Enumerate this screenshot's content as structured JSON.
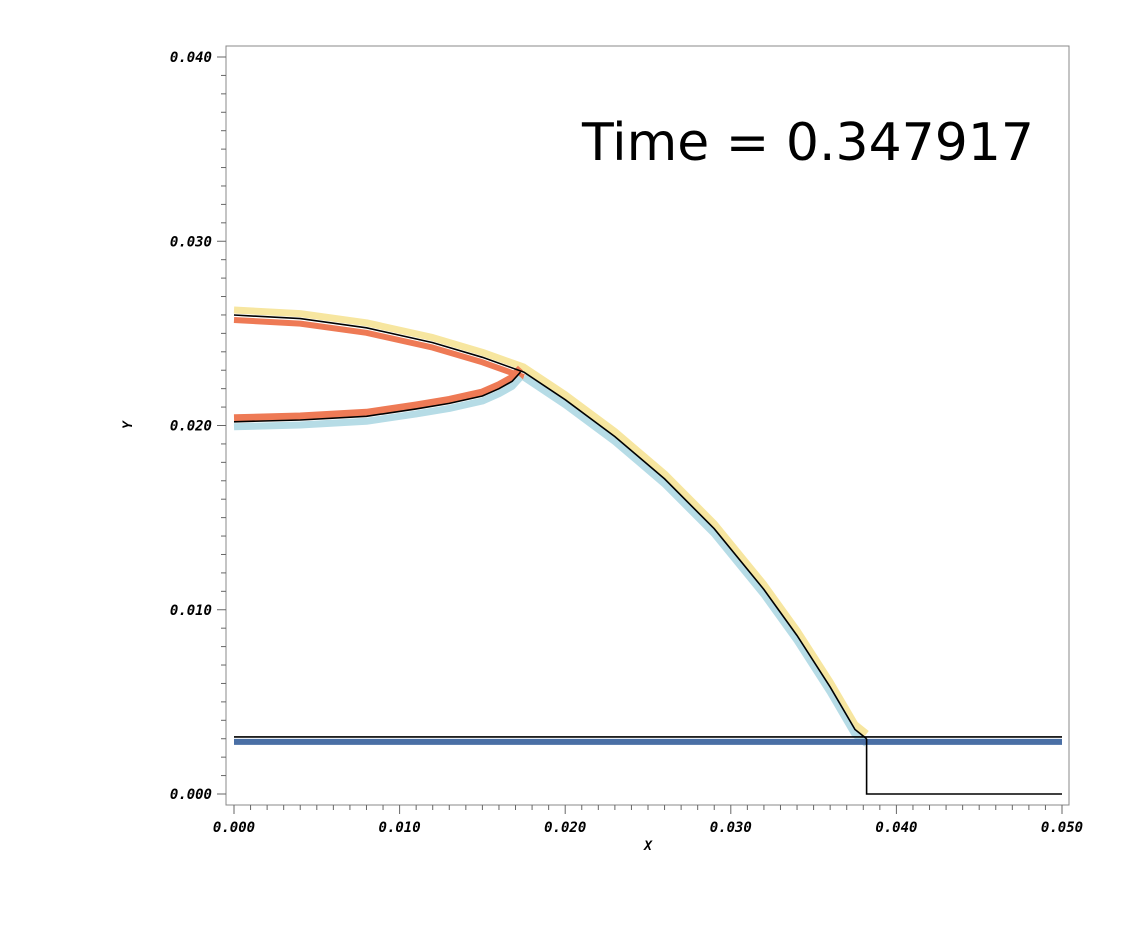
{
  "chart_data": {
    "type": "line",
    "annotation": "Time = 0.347917",
    "xlabel": "X",
    "ylabel": "Y",
    "xlim": [
      0.0,
      0.05
    ],
    "ylim": [
      0.0,
      0.04
    ],
    "x_ticks": [
      "0.000",
      "0.010",
      "0.020",
      "0.030",
      "0.040",
      "0.050"
    ],
    "y_ticks": [
      "0.000",
      "0.010",
      "0.020",
      "0.030",
      "0.040"
    ],
    "grid": false,
    "colors": {
      "upper_band": "#f7e6a0",
      "lower_band": "#b6dce6",
      "jet_band": "#ee7a55",
      "wall_band": "#4a6fa5",
      "curve": "#000000",
      "frame": "#888888"
    },
    "series": [
      {
        "x": [
          0.0,
          0.004,
          0.008,
          0.012,
          0.015,
          0.0175,
          0.02,
          0.023,
          0.026,
          0.029,
          0.032,
          0.034,
          0.036,
          0.0375,
          0.0382
        ],
        "y": [
          0.026,
          0.0258,
          0.0253,
          0.0245,
          0.0237,
          0.0229,
          0.0214,
          0.0194,
          0.0171,
          0.0144,
          0.0111,
          0.0086,
          0.0058,
          0.0035,
          0.003
        ]
      },
      {
        "x": [
          0.0,
          0.004,
          0.008,
          0.011,
          0.013,
          0.015,
          0.016,
          0.0168,
          0.0173
        ],
        "y": [
          0.0202,
          0.0203,
          0.0205,
          0.0209,
          0.0212,
          0.0216,
          0.022,
          0.0224,
          0.0229
        ]
      },
      {
        "x": [
          0.0,
          0.05
        ],
        "y": [
          0.0031,
          0.0031
        ]
      },
      {
        "x": [
          0.0382,
          0.0382,
          0.05
        ],
        "y": [
          0.003,
          0.0,
          0.0
        ]
      }
    ]
  }
}
